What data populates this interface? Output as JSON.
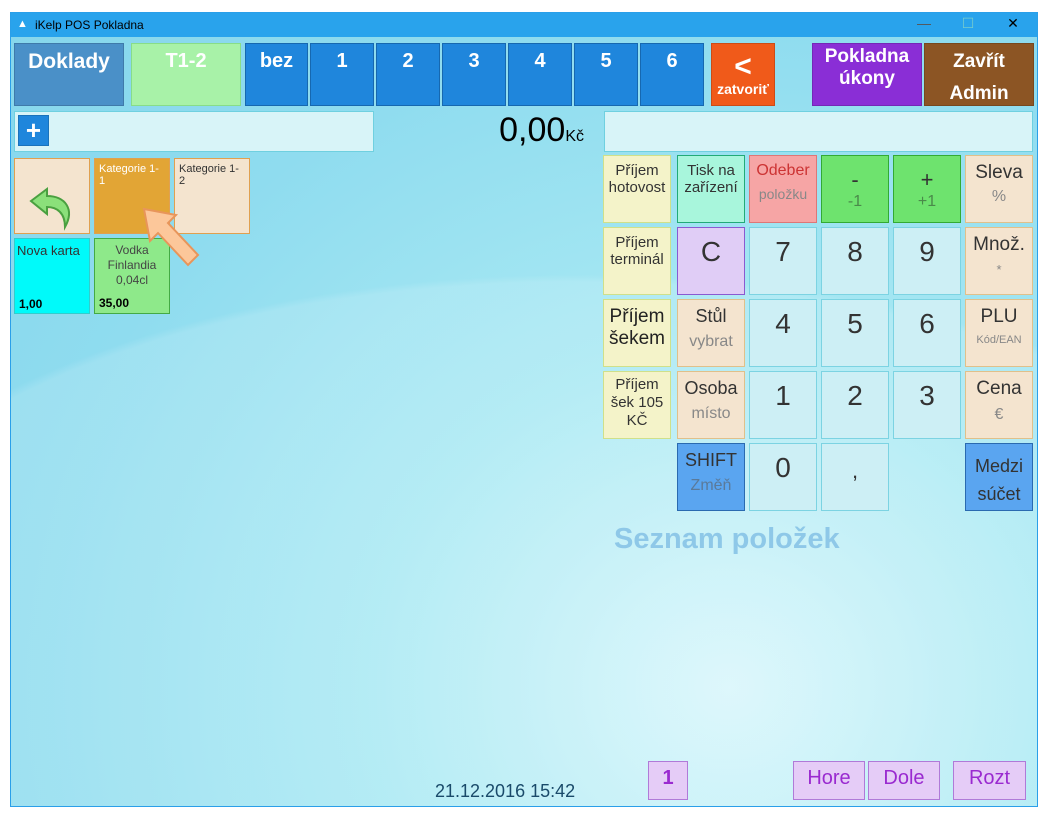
{
  "window": {
    "title": "iKelp POS Pokladna",
    "minimize": "—",
    "maximize": "☐",
    "close": "✕"
  },
  "topbar": {
    "doklady": "Doklady",
    "table": "T1-2",
    "bez": "bez",
    "tabs": [
      "1",
      "2",
      "3",
      "4",
      "5",
      "6"
    ],
    "close_arrow": "<",
    "close_label": "zatvoriť",
    "pokladna": [
      "Pokladna",
      "úkony"
    ],
    "zavrit": [
      "Zavřít",
      "Admin"
    ]
  },
  "search": {
    "add": "+",
    "total": "0,00",
    "currency": "Kč"
  },
  "tiles": {
    "kat1": "Kategorie 1-1",
    "kat2": "Kategorie 1-2",
    "nova": "Nova karta",
    "nova_price": "1,00",
    "vodka": [
      "Vodka",
      "Finlandia",
      "0,04cl"
    ],
    "vodka_price": "35,00"
  },
  "keypad": {
    "prijem_hotovost": [
      "Příjem",
      "hotovost"
    ],
    "tisk": [
      "Tisk na",
      "zařízení"
    ],
    "odeber": [
      "Odeber",
      "položku"
    ],
    "minus": [
      "-",
      "-1"
    ],
    "plus": [
      "+",
      "+1"
    ],
    "sleva": [
      "Sleva",
      "%"
    ],
    "prijem_terminal": [
      "Příjem",
      "terminál"
    ],
    "c": "C",
    "n7": "7",
    "n8": "8",
    "n9": "9",
    "mnoz": [
      "Množ.",
      "*"
    ],
    "prijem_sekem": [
      "Příjem",
      "šekem"
    ],
    "stul": [
      "Stůl",
      "vybrat"
    ],
    "n4": "4",
    "n5": "5",
    "n6": "6",
    "plu": [
      "PLU",
      "Kód/EAN"
    ],
    "prijem_sek105": [
      "Příjem",
      "šek 105",
      "KČ"
    ],
    "osoba": [
      "Osoba",
      "místo"
    ],
    "n1": "1",
    "n2": "2",
    "n3": "3",
    "cena": [
      "Cena",
      "€"
    ],
    "shift": [
      "SHIFT",
      "Změň"
    ],
    "n0": "0",
    "comma": ",",
    "medzi": [
      "Medzi",
      "súčet"
    ]
  },
  "list": {
    "placeholder": "Seznam položek"
  },
  "footer": {
    "datetime": "21.12.2016 15:42",
    "page": "1",
    "hore": "Hore",
    "dole": "Dole",
    "rozt": "Rozt"
  }
}
